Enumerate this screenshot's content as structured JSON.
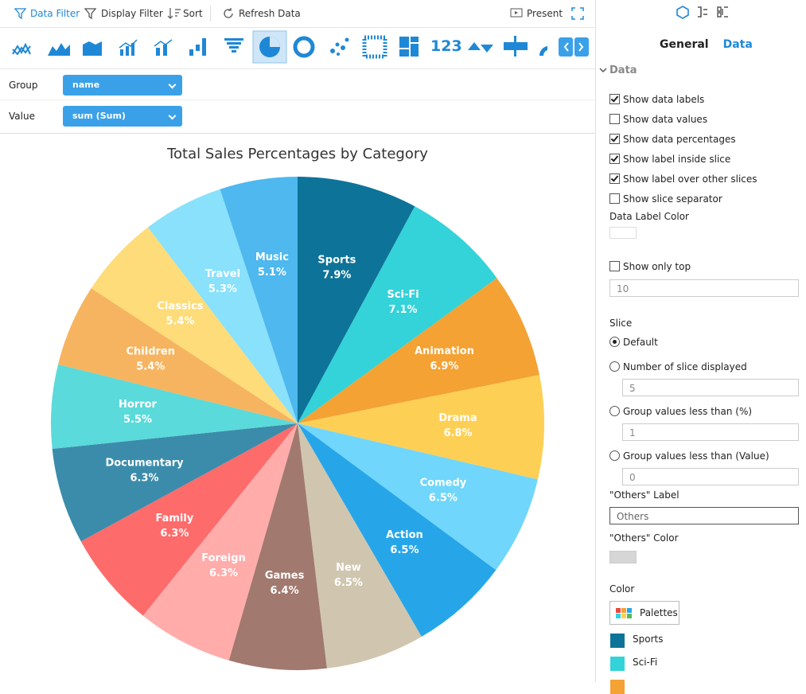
{
  "toolbar": {
    "data_filter": "Data Filter",
    "display_filter": "Display Filter",
    "sort": "Sort",
    "refresh": "Refresh Data",
    "present": "Present",
    "number_icon": "123"
  },
  "fields": [
    {
      "label": "Group",
      "value": "name"
    },
    {
      "label": "Value",
      "value": "sum (Sum)"
    }
  ],
  "chart_data": {
    "type": "pie",
    "title": "Total Sales Percentages by Category",
    "categories": [
      "Sports",
      "Sci-Fi",
      "Animation",
      "Drama",
      "Comedy",
      "Action",
      "New",
      "Games",
      "Foreign",
      "Family",
      "Documentary",
      "Horror",
      "Children",
      "Classics",
      "Travel",
      "Music"
    ],
    "values": [
      7.9,
      7.1,
      6.9,
      6.8,
      6.5,
      6.5,
      6.5,
      6.4,
      6.3,
      6.3,
      6.3,
      5.5,
      5.4,
      5.4,
      5.3,
      5.1
    ],
    "value_labels": [
      "7.9%",
      "7.1%",
      "6.9%",
      "6.8%",
      "6.5%",
      "6.5%",
      "6.5%",
      "6.4%",
      "6.3%",
      "6.3%",
      "6.3%",
      "5.5%",
      "5.4%",
      "5.4%",
      "5.3%",
      "5.1%"
    ],
    "colors": [
      "#0e7398",
      "#33d3d9",
      "#f4a234",
      "#fdd055",
      "#70d6fb",
      "#26a6e9",
      "#d0c6b0",
      "#a1796f",
      "#ffacab",
      "#fe6b6b",
      "#3b8cab",
      "#5adada",
      "#f6b461",
      "#fddc79",
      "#89e1fb",
      "#4eb8ef"
    ]
  },
  "panel": {
    "tabs": [
      "General",
      "Data"
    ],
    "active_tab": 1,
    "section": "Data",
    "options": [
      {
        "label": "Show data labels",
        "checked": true
      },
      {
        "label": "Show data values",
        "checked": false
      },
      {
        "label": "Show data percentages",
        "checked": true
      },
      {
        "label": "Show label inside slice",
        "checked": true
      },
      {
        "label": "Show label over other slices",
        "checked": true
      },
      {
        "label": "Show slice separator",
        "checked": false
      }
    ],
    "data_label_color": "Data Label Color",
    "show_only_top": {
      "label": "Show only top",
      "checked": false,
      "value": "10"
    },
    "slice_heading": "Slice",
    "slice_options": [
      {
        "label": "Default",
        "selected": true
      },
      {
        "label": "Number of slice displayed",
        "selected": false,
        "value": "5"
      },
      {
        "label": "Group values less than (%)",
        "selected": false,
        "value": "1"
      },
      {
        "label": "Group values less than (Value)",
        "selected": false,
        "value": "0"
      }
    ],
    "others_label": {
      "label": "\"Others\" Label",
      "value": "Others"
    },
    "others_color": "\"Others\" Color",
    "color_heading": "Color",
    "palettes": "Palettes"
  }
}
